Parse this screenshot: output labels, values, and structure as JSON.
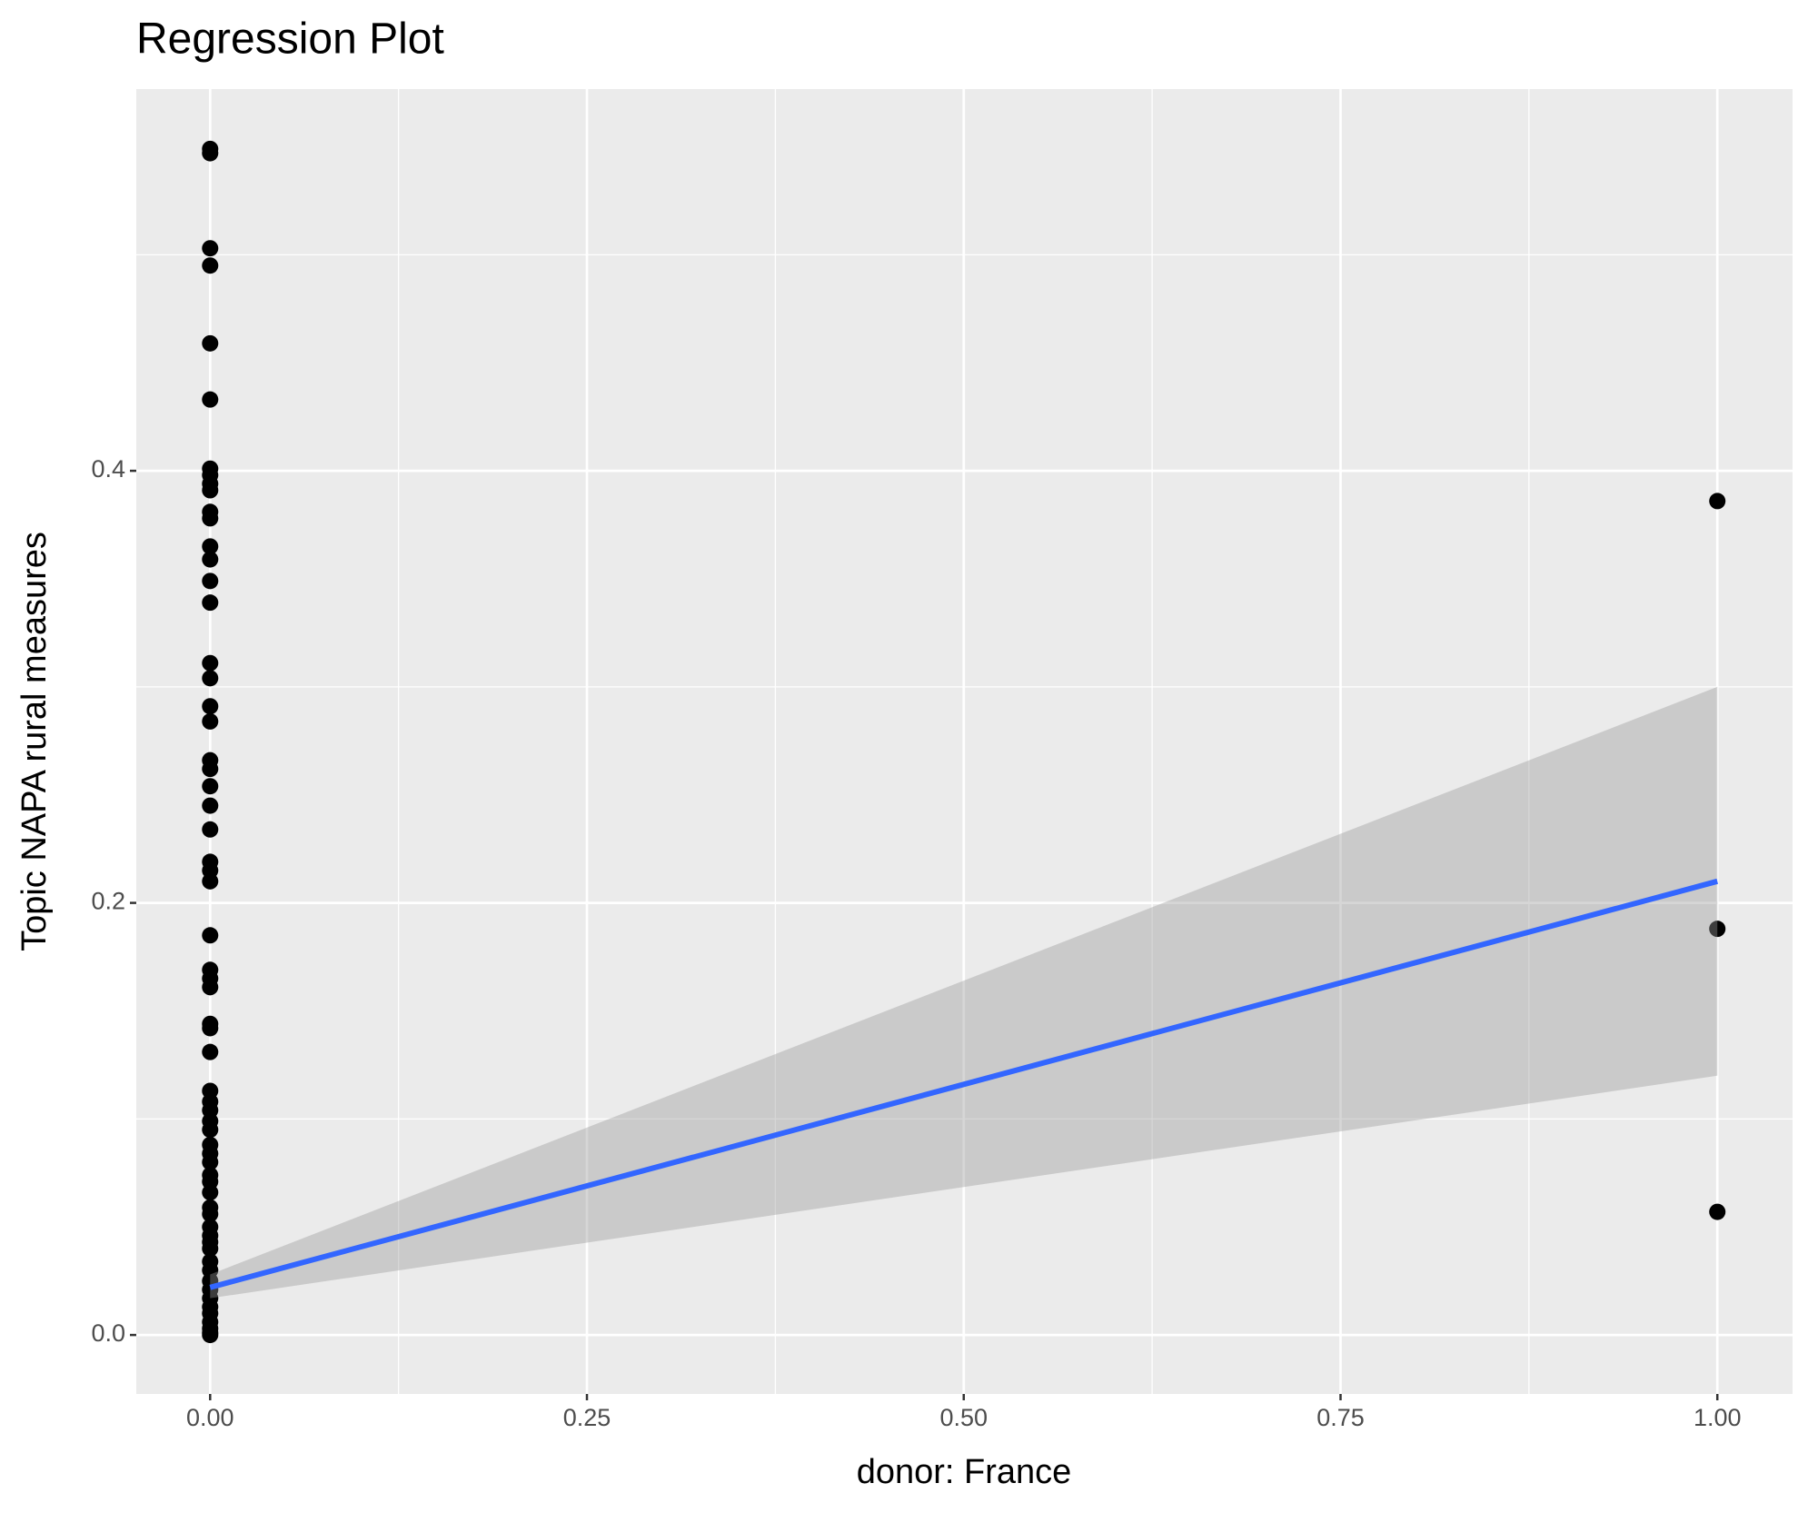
{
  "chart_data": {
    "type": "scatter",
    "title": "Regression Plot",
    "x_label": "donor: France",
    "y_label": "Topic NAPA rural measures",
    "points": {
      "color": "#000000",
      "x": [
        0,
        0,
        0,
        0,
        0,
        0,
        0,
        0,
        0,
        0,
        0,
        0,
        0,
        0,
        0,
        0,
        0,
        0,
        0,
        0,
        0,
        0,
        0,
        0,
        0,
        0,
        0,
        0,
        0,
        0,
        0,
        0,
        0,
        0,
        0,
        0,
        0,
        0,
        0,
        0,
        0,
        0,
        0,
        0,
        0,
        0,
        0,
        0,
        0,
        0,
        0,
        0,
        0,
        0,
        0,
        0,
        0,
        0,
        0,
        0,
        0,
        0,
        0,
        1,
        1,
        1
      ],
      "y": [
        0.549,
        0.547,
        0.503,
        0.495,
        0.459,
        0.433,
        0.401,
        0.398,
        0.394,
        0.391,
        0.381,
        0.378,
        0.365,
        0.359,
        0.349,
        0.339,
        0.311,
        0.304,
        0.291,
        0.284,
        0.266,
        0.262,
        0.254,
        0.245,
        0.234,
        0.219,
        0.215,
        0.21,
        0.185,
        0.169,
        0.165,
        0.161,
        0.144,
        0.142,
        0.131,
        0.113,
        0.108,
        0.104,
        0.099,
        0.095,
        0.088,
        0.084,
        0.08,
        0.074,
        0.071,
        0.066,
        0.059,
        0.056,
        0.05,
        0.046,
        0.043,
        0.04,
        0.034,
        0.03,
        0.025,
        0.021,
        0.017,
        0.013,
        0.01,
        0.006,
        0.003,
        0.001,
        0,
        0.386,
        0.188,
        0.057
      ]
    },
    "fit": {
      "x": [
        0,
        1
      ],
      "y": [
        0.022,
        0.21
      ],
      "lower": [
        0.017,
        0.12
      ],
      "upper": [
        0.028,
        0.3
      ],
      "color": "#3366ff",
      "band_color": "#999999"
    },
    "xlim": [
      -0.049,
      1.0499
    ],
    "ylim": [
      -0.0273,
      0.5767
    ],
    "xticks": [
      {
        "value": 0,
        "label": "0.00"
      },
      {
        "value": 0.25,
        "label": "0.25"
      },
      {
        "value": 0.5,
        "label": "0.50"
      },
      {
        "value": 0.75,
        "label": "0.75"
      },
      {
        "value": 1,
        "label": "1.00"
      }
    ],
    "yticks": [
      {
        "value": 0,
        "label": "0.0"
      },
      {
        "value": 0.2,
        "label": "0.2"
      },
      {
        "value": 0.4,
        "label": "0.4"
      }
    ],
    "grid": true
  }
}
